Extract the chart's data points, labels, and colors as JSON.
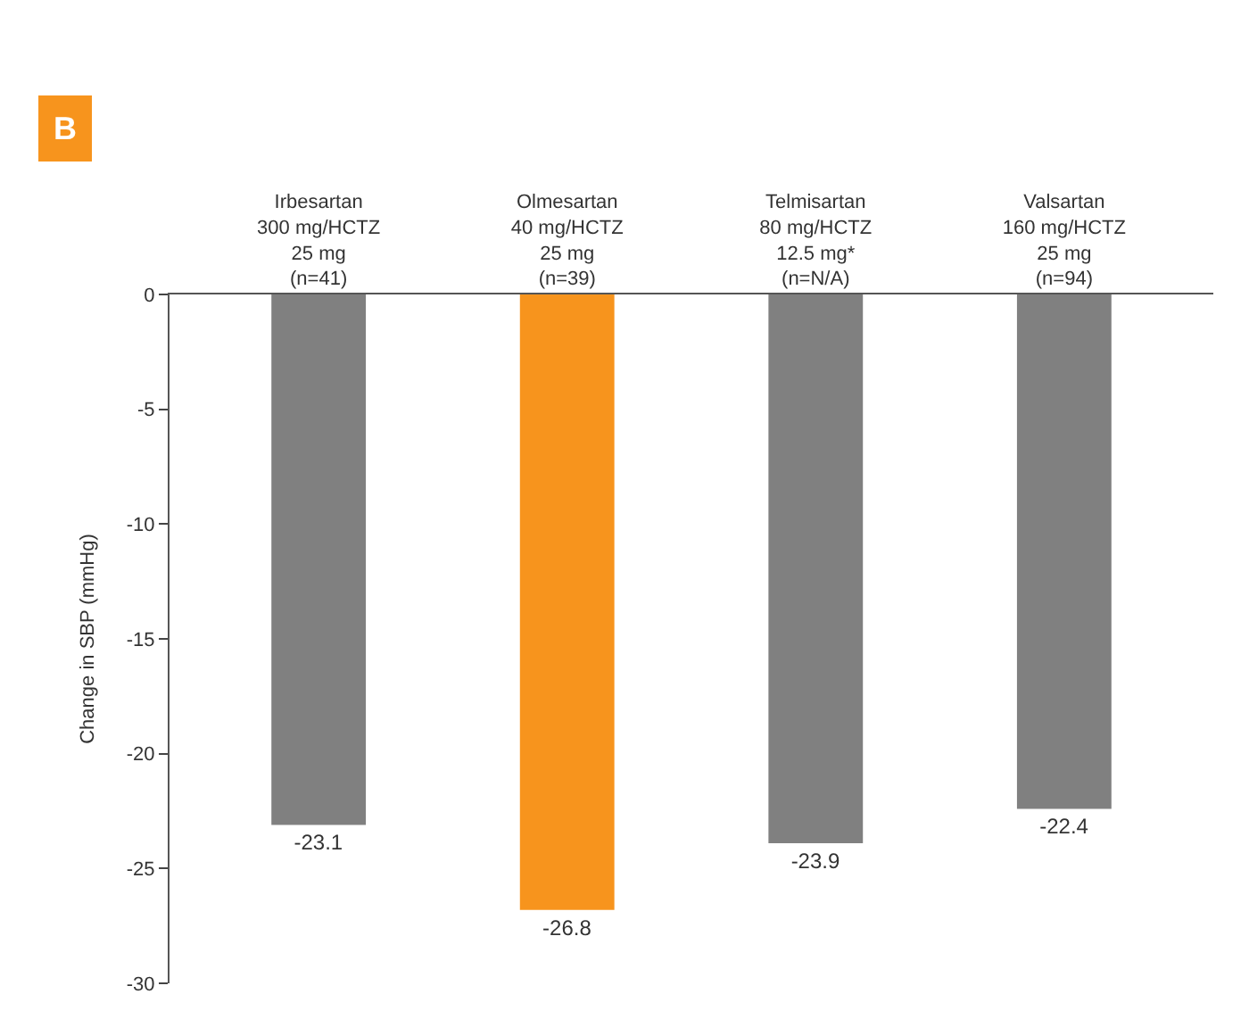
{
  "chart_data": {
    "type": "bar",
    "ylabel": "Change in SBP (mmHg)",
    "categories": [
      "Irbesartan\n300 mg/HCTZ\n25 mg\n(n=41)",
      "Olmesartan\n40 mg/HCTZ\n25 mg\n(n=39)",
      "Telmisartan\n80 mg/HCTZ\n12.5 mg*\n(n=N/A)",
      "Valsartan\n160 mg/HCTZ\n25 mg\n(n=94)"
    ],
    "values": [
      -23.1,
      -26.8,
      -23.9,
      -22.4
    ],
    "colors": [
      "#808080",
      "#f7941d",
      "#808080",
      "#808080"
    ],
    "data_labels": true,
    "ylim": [
      -30,
      0
    ],
    "yticks": [
      0,
      -5,
      -10,
      -15,
      -20,
      -25,
      -30
    ],
    "annotations": [
      "B"
    ]
  }
}
